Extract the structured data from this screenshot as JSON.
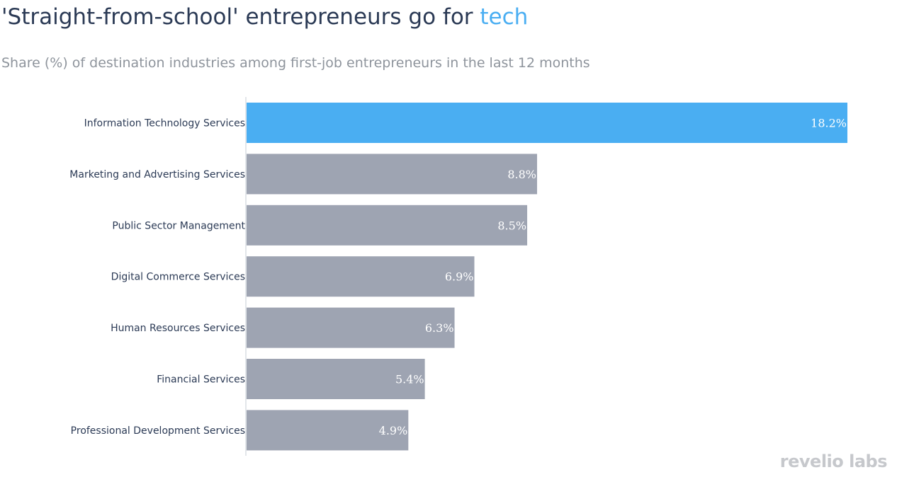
{
  "header": {
    "title_main": "'Straight-from-school' entrepreneurs go for ",
    "title_highlight": "tech",
    "subtitle": "Share (%) of destination industries among first-job entrepreneurs in the last 12 months"
  },
  "logo": {
    "text": "revelio labs"
  },
  "colors": {
    "highlight": "#4aaef2",
    "default_bar": "#9ea4b2",
    "axis_line": "#e3e6ea"
  },
  "chart_data": {
    "type": "bar",
    "orientation": "horizontal",
    "title": "'Straight-from-school' entrepreneurs go for tech",
    "subtitle": "Share (%) of destination industries among first-job entrepreneurs in the last 12 months",
    "categories": [
      "Information Technology Services",
      "Marketing and Advertising Services",
      "Public Sector Management",
      "Digital Commerce Services",
      "Human Resources Services",
      "Financial Services",
      "Professional Development Services"
    ],
    "values": [
      18.2,
      8.8,
      8.5,
      6.9,
      6.3,
      5.4,
      4.9
    ],
    "value_labels": [
      "18.2%",
      "8.8%",
      "8.5%",
      "6.9%",
      "6.3%",
      "5.4%",
      "4.9%"
    ],
    "highlighted_index": 0,
    "xlim": [
      0,
      18.2
    ],
    "grid": false,
    "legend": "none"
  }
}
